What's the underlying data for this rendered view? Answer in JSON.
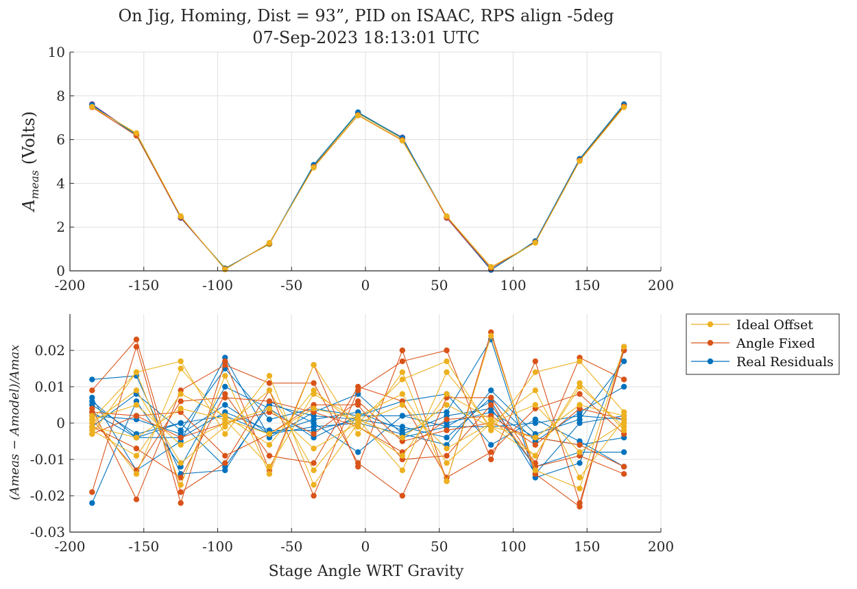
{
  "chart_data": [
    {
      "type": "line",
      "title": "On Jig, Homing, Dist = 93”, PID on ISAAC, RPS align -5deg",
      "subtitle": "07-Sep-2023 18:13:01 UTC",
      "ylabel": "A_meas (Volts)",
      "ylabel_main": "A",
      "ylabel_sub": "meas",
      "ylabel_unit": "(Volts)",
      "xlabel": "",
      "xlim": [
        -200,
        200
      ],
      "ylim": [
        0,
        10
      ],
      "xticks": [
        "-200",
        "-150",
        "-100",
        "-50",
        "0",
        "50",
        "100",
        "150",
        "200"
      ],
      "yticks": [
        "0",
        "2",
        "4",
        "6",
        "8",
        "10"
      ],
      "grid": true,
      "x": [
        -185,
        -155,
        -125,
        -95,
        -65,
        -35,
        -5,
        25,
        55,
        85,
        115,
        145,
        175
      ],
      "series": [
        {
          "color": "#7e2f8e",
          "values": [
            7.62,
            6.22,
            2.42,
            0.1,
            1.24,
            4.8,
            7.22,
            6.1,
            2.42,
            0.04,
            1.34,
            5.1,
            7.6
          ]
        },
        {
          "color": "#77ac30",
          "values": [
            7.55,
            6.25,
            2.45,
            0.12,
            1.22,
            4.82,
            7.2,
            6.05,
            2.45,
            0.06,
            1.3,
            5.08,
            7.55
          ]
        },
        {
          "color": "#0072bd",
          "values": [
            7.58,
            6.2,
            2.44,
            0.1,
            1.26,
            4.85,
            7.25,
            6.08,
            2.48,
            0.05,
            1.36,
            5.12,
            7.62
          ]
        },
        {
          "color": "#d95319",
          "values": [
            7.48,
            6.18,
            2.46,
            0.08,
            1.25,
            4.75,
            7.12,
            5.98,
            2.44,
            0.12,
            1.3,
            5.05,
            7.52
          ]
        },
        {
          "color": "#edb120",
          "values": [
            7.5,
            6.3,
            2.5,
            0.06,
            1.28,
            4.72,
            7.1,
            5.95,
            2.5,
            0.18,
            1.28,
            5.02,
            7.48
          ]
        }
      ]
    },
    {
      "type": "line",
      "ylabel": "(A_meas - A_model)/A_max",
      "ylabel_expr": "(Ameas − Amodel)/Amax",
      "xlabel": "Stage Angle WRT Gravity",
      "xlim": [
        -200,
        200
      ],
      "ylim": [
        -0.03,
        0.03
      ],
      "xticks": [
        "-200",
        "-150",
        "-100",
        "-50",
        "0",
        "50",
        "100",
        "150",
        "200"
      ],
      "yticks": [
        "-0.03",
        "-0.02",
        "-0.01",
        "0",
        "0.01",
        "0.02"
      ],
      "grid": true,
      "legend_position": "outside-top-right",
      "legend": [
        {
          "name": "Ideal Offset",
          "color": "#edb120"
        },
        {
          "name": "Angle Fixed",
          "color": "#d95319"
        },
        {
          "name": "Real Residuals",
          "color": "#0072bd"
        }
      ],
      "x": [
        -185,
        -155,
        -125,
        -95,
        -65,
        -35,
        -5,
        25,
        55,
        85,
        115,
        145,
        175
      ],
      "series": [
        {
          "group": "Real Residuals",
          "color": "#0072bd",
          "values": [
            0.012,
            0.013,
            -0.014,
            -0.013,
            0.006,
            0.0,
            -0.008,
            0.002,
            0.003,
            0.023,
            -0.015,
            -0.011,
            0.02
          ]
        },
        {
          "group": "Real Residuals",
          "color": "#0072bd",
          "values": [
            0.007,
            -0.013,
            -0.005,
            0.018,
            -0.004,
            0.003,
            0.008,
            -0.003,
            -0.006,
            0.009,
            -0.003,
            0.001,
            0.017
          ]
        },
        {
          "group": "Real Residuals",
          "color": "#0072bd",
          "values": [
            -0.022,
            0.006,
            -0.012,
            0.01,
            0.004,
            -0.004,
            0.002,
            0.006,
            0.008,
            -0.006,
            0.001,
            -0.005,
            -0.012
          ]
        },
        {
          "group": "Real Residuals",
          "color": "#0072bd",
          "values": [
            0.005,
            -0.003,
            0.0,
            -0.012,
            0.005,
            0.002,
            0.001,
            -0.001,
            -0.004,
            0.007,
            -0.005,
            0.003,
            0.01
          ]
        },
        {
          "group": "Real Residuals",
          "color": "#0072bd",
          "values": [
            0.002,
            0.001,
            -0.003,
            0.005,
            -0.003,
            -0.001,
            0.0,
            -0.003,
            0.002,
            0.004,
            -0.012,
            -0.008,
            -0.008
          ]
        },
        {
          "group": "Real Residuals",
          "color": "#0072bd",
          "values": [
            -0.001,
            0.008,
            -0.002,
            0.015,
            0.001,
            0.004,
            0.002,
            0.002,
            -0.001,
            -0.001,
            0.0,
            0.002,
            0.001
          ]
        },
        {
          "group": "Real Residuals",
          "color": "#0072bd",
          "values": [
            0.003,
            -0.004,
            0.0,
            0.002,
            -0.003,
            0.001,
            0.003,
            -0.002,
            0.0,
            0.003,
            -0.004,
            -0.006,
            -0.004
          ]
        },
        {
          "group": "Real Residuals",
          "color": "#0072bd",
          "values": [
            0.006,
            -0.004,
            -0.004,
            0.003,
            -0.002,
            -0.002,
            0.001,
            -0.004,
            -0.001,
            0.006,
            -0.014,
            0.0,
            0.002
          ]
        },
        {
          "group": "Angle Fixed",
          "color": "#d95319",
          "values": [
            -0.019,
            0.021,
            -0.022,
            0.017,
            -0.013,
            0.016,
            -0.012,
            0.02,
            -0.016,
            0.025,
            -0.014,
            -0.023,
            0.021
          ]
        },
        {
          "group": "Angle Fixed",
          "color": "#d95319",
          "values": [
            0.009,
            0.023,
            -0.019,
            -0.011,
            0.009,
            -0.02,
            0.009,
            0.017,
            0.02,
            -0.01,
            0.017,
            -0.022,
            0.02
          ]
        },
        {
          "group": "Angle Fixed",
          "color": "#d95319",
          "values": [
            0.004,
            -0.021,
            0.009,
            0.016,
            0.011,
            0.011,
            -0.011,
            -0.02,
            0.007,
            0.007,
            -0.011,
            0.018,
            0.012
          ]
        },
        {
          "group": "Angle Fixed",
          "color": "#d95319",
          "values": [
            -0.001,
            -0.007,
            -0.015,
            0.008,
            -0.009,
            -0.011,
            0.01,
            0.006,
            -0.015,
            -0.008,
            0.004,
            0.008,
            -0.003
          ]
        },
        {
          "group": "Angle Fixed",
          "color": "#d95319",
          "values": [
            0.003,
            0.002,
            0.003,
            -0.009,
            -0.003,
            0.005,
            0.005,
            -0.01,
            -0.009,
            0.005,
            -0.012,
            -0.009,
            -0.014
          ]
        },
        {
          "group": "Angle Fixed",
          "color": "#d95319",
          "values": [
            0.001,
            -0.013,
            0.006,
            0.007,
            0.006,
            0.003,
            -0.001,
            -0.008,
            0.001,
            0.002,
            -0.006,
            0.004,
            0.001
          ]
        },
        {
          "group": "Angle Fixed",
          "color": "#d95319",
          "values": [
            -0.003,
            0.002,
            -0.004,
            0.0,
            0.003,
            -0.003,
            0.006,
            -0.005,
            -0.002,
            0.0,
            -0.004,
            -0.006,
            -0.012
          ]
        },
        {
          "group": "Ideal Offset",
          "color": "#edb120",
          "values": [
            0.001,
            0.014,
            -0.017,
            0.013,
            -0.014,
            0.016,
            -0.003,
            0.014,
            -0.016,
            0.024,
            -0.013,
            -0.018,
            0.021
          ]
        },
        {
          "group": "Ideal Offset",
          "color": "#edb120",
          "values": [
            -0.003,
            0.014,
            0.017,
            -0.003,
            0.013,
            -0.017,
            0.0,
            0.012,
            0.017,
            -0.002,
            0.014,
            0.017,
            0.003
          ]
        },
        {
          "group": "Ideal Offset",
          "color": "#edb120",
          "values": [
            0.002,
            -0.014,
            0.015,
            0.001,
            -0.012,
            0.008,
            0.001,
            -0.013,
            0.014,
            -0.001,
            -0.009,
            0.011,
            -0.002
          ]
        },
        {
          "group": "Ideal Offset",
          "color": "#edb120",
          "values": [
            0.0,
            0.009,
            -0.011,
            -0.001,
            0.009,
            -0.013,
            0.002,
            0.008,
            -0.011,
            0.0,
            0.009,
            -0.015,
            0.001
          ]
        },
        {
          "group": "Ideal Offset",
          "color": "#edb120",
          "values": [
            -0.002,
            -0.009,
            0.008,
            0.002,
            -0.006,
            0.009,
            -0.001,
            -0.009,
            0.008,
            0.001,
            -0.009,
            0.01,
            -0.001
          ]
        },
        {
          "group": "Ideal Offset",
          "color": "#edb120",
          "values": [
            0.001,
            0.005,
            -0.006,
            0.0,
            0.004,
            -0.007,
            0.0,
            0.005,
            -0.007,
            0.0,
            0.005,
            -0.008,
            0.0
          ]
        },
        {
          "group": "Ideal Offset",
          "color": "#edb120",
          "values": [
            -0.001,
            -0.004,
            0.004,
            0.001,
            -0.003,
            0.004,
            0.001,
            -0.004,
            0.005,
            -0.001,
            -0.004,
            0.005,
            0.002
          ]
        }
      ]
    }
  ]
}
